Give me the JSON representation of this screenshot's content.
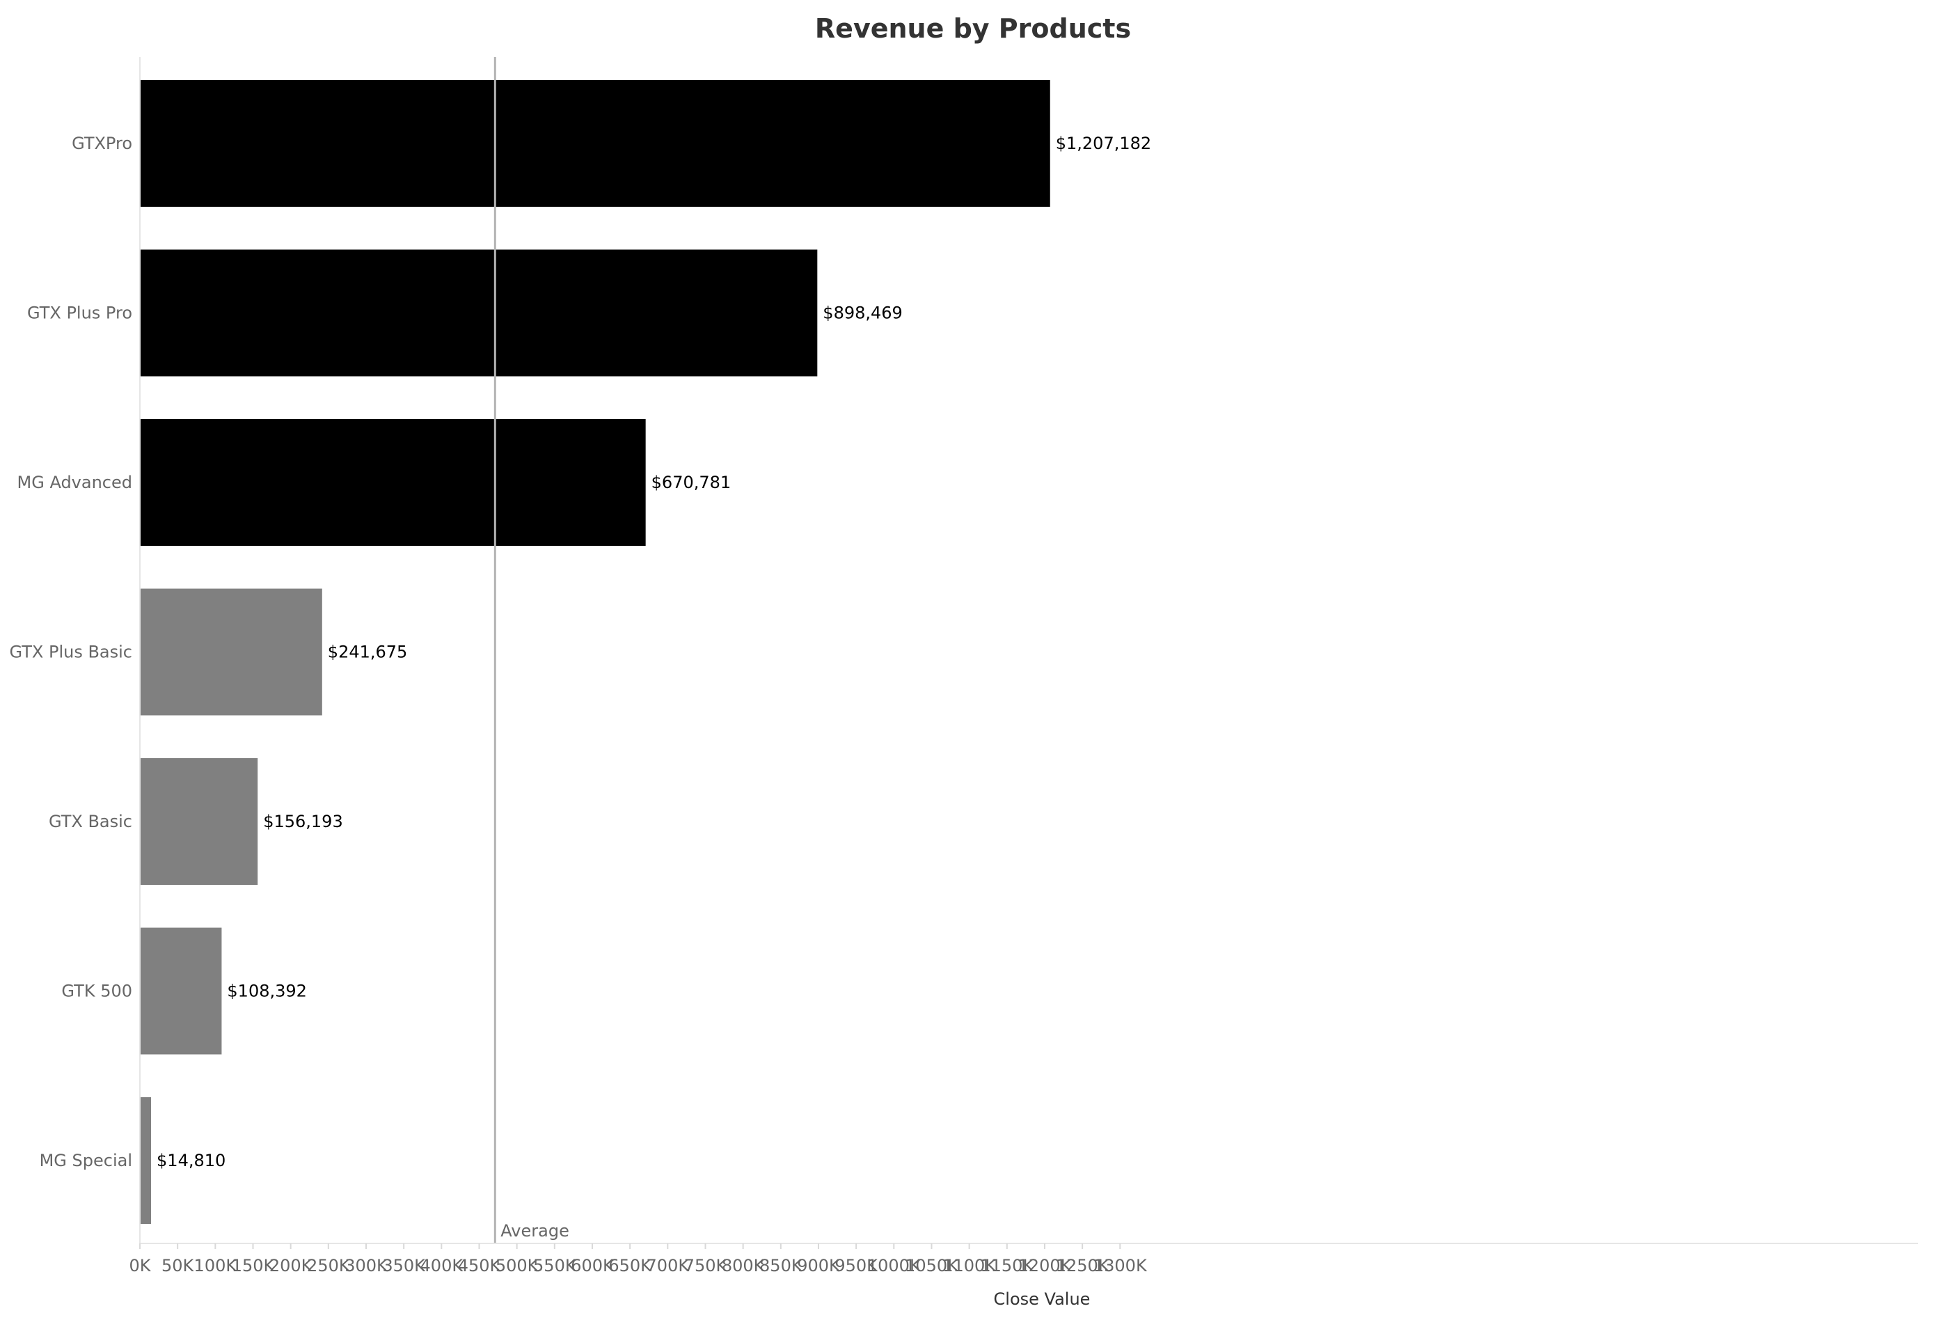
{
  "chart_data": {
    "type": "bar",
    "orientation": "horizontal",
    "title": "Revenue by Products",
    "xlabel": "Close Value",
    "ylabel": "",
    "categories": [
      "GTXPro",
      "GTX Plus Pro",
      "MG Advanced",
      "GTX Plus Basic",
      "GTX Basic",
      "GTK 500",
      "MG Special"
    ],
    "values": [
      1207182,
      898469,
      670781,
      241675,
      156193,
      108392,
      14810
    ],
    "value_labels": [
      "$1,207,182",
      "$898,469",
      "$670,781",
      "$241,675",
      "$156,193",
      "$108,392",
      "$14,810"
    ],
    "bar_colors": [
      "#000000",
      "#000000",
      "#000000",
      "#808080",
      "#808080",
      "#808080",
      "#808080"
    ],
    "xlim": [
      0,
      1300000
    ],
    "xticks": [
      0,
      50000,
      100000,
      150000,
      200000,
      250000,
      300000,
      350000,
      400000,
      450000,
      500000,
      550000,
      600000,
      650000,
      700000,
      750000,
      800000,
      850000,
      900000,
      950000,
      1000000,
      1050000,
      1100000,
      1150000,
      1200000,
      1250000,
      1300000
    ],
    "xtick_labels": [
      "0K",
      "50K",
      "100K",
      "150K",
      "200K",
      "250K",
      "300K",
      "350K",
      "400K",
      "450K",
      "500K",
      "550K",
      "600K",
      "650K",
      "700K",
      "750K",
      "800K",
      "850K",
      "900K",
      "950K",
      "1000K",
      "1050K",
      "1100K",
      "1150K",
      "1200K",
      "1250K",
      "1300K"
    ],
    "reference_line": {
      "label": "Average",
      "value": 471072,
      "color": "#b3b3b3"
    },
    "grid": false,
    "legend": "none"
  }
}
